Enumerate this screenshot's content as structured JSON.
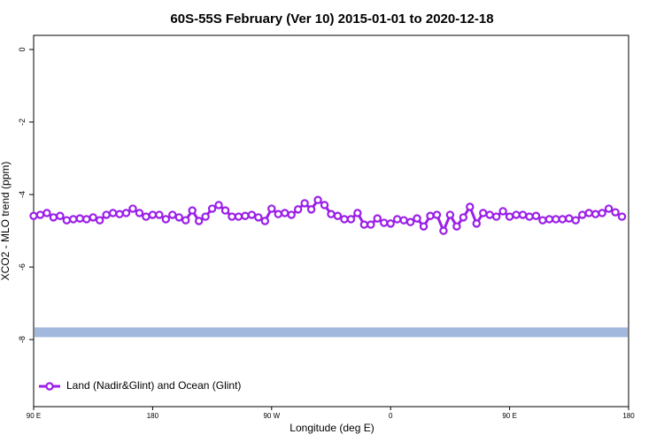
{
  "chart_data": {
    "type": "line",
    "title": "60S-55S February (Ver 10)   2015-01-01 to 2020-12-18",
    "xlabel": "Longitude (deg E)",
    "ylabel": "XCO2 - MLO trend (ppm)",
    "xlim": [
      90,
      540
    ],
    "ylim": [
      -9.85,
      0.39
    ],
    "xticks": [
      {
        "value": 90,
        "label": "90 E"
      },
      {
        "value": 180,
        "label": "180"
      },
      {
        "value": 270,
        "label": "90 W"
      },
      {
        "value": 360,
        "label": "0"
      },
      {
        "value": 450,
        "label": "90 E"
      },
      {
        "value": 540,
        "label": "180"
      }
    ],
    "yticks": [
      0,
      -2,
      -4,
      -6,
      -8
    ],
    "legend_position": "bottom-left",
    "reference_band": {
      "y": -7.8,
      "color": "#a3b8dd"
    },
    "x": [
      90,
      95,
      100,
      105,
      110,
      115,
      120,
      125,
      130,
      135,
      140,
      145,
      150,
      155,
      160,
      165,
      170,
      175,
      180,
      185,
      190,
      195,
      200,
      205,
      210,
      215,
      220,
      225,
      230,
      235,
      240,
      245,
      250,
      255,
      260,
      265,
      270,
      275,
      280,
      285,
      290,
      295,
      300,
      305,
      310,
      315,
      320,
      325,
      330,
      335,
      340,
      345,
      350,
      355,
      360,
      365,
      370,
      375,
      380,
      385,
      390,
      395,
      400,
      405,
      410,
      415,
      420,
      425,
      430,
      435,
      440,
      445,
      450,
      455,
      460,
      465,
      470,
      475,
      480,
      485,
      490,
      495,
      500,
      505,
      510,
      515,
      520,
      525,
      530,
      535
    ],
    "series": [
      {
        "name": "Land (Nadir&Glint) and Ocean (Glint)",
        "color": "#9b1fe8",
        "values": [
          -4.59,
          -4.56,
          -4.51,
          -4.63,
          -4.59,
          -4.71,
          -4.68,
          -4.66,
          -4.68,
          -4.63,
          -4.71,
          -4.56,
          -4.51,
          -4.54,
          -4.51,
          -4.39,
          -4.51,
          -4.61,
          -4.56,
          -4.56,
          -4.68,
          -4.56,
          -4.63,
          -4.71,
          -4.44,
          -4.73,
          -4.61,
          -4.39,
          -4.29,
          -4.44,
          -4.61,
          -4.61,
          -4.59,
          -4.56,
          -4.63,
          -4.73,
          -4.39,
          -4.54,
          -4.51,
          -4.56,
          -4.41,
          -4.24,
          -4.41,
          -4.15,
          -4.29,
          -4.54,
          -4.59,
          -4.68,
          -4.68,
          -4.51,
          -4.83,
          -4.83,
          -4.66,
          -4.78,
          -4.8,
          -4.68,
          -4.71,
          -4.76,
          -4.66,
          -4.88,
          -4.59,
          -4.56,
          -5.0,
          -4.56,
          -4.88,
          -4.63,
          -4.34,
          -4.8,
          -4.51,
          -4.56,
          -4.61,
          -4.46,
          -4.61,
          -4.56,
          -4.56,
          -4.61,
          -4.59,
          -4.71,
          -4.68,
          -4.68,
          -4.68,
          -4.66,
          -4.71,
          -4.56,
          -4.51,
          -4.54,
          -4.51,
          -4.39,
          -4.49,
          -4.61
        ]
      }
    ]
  }
}
